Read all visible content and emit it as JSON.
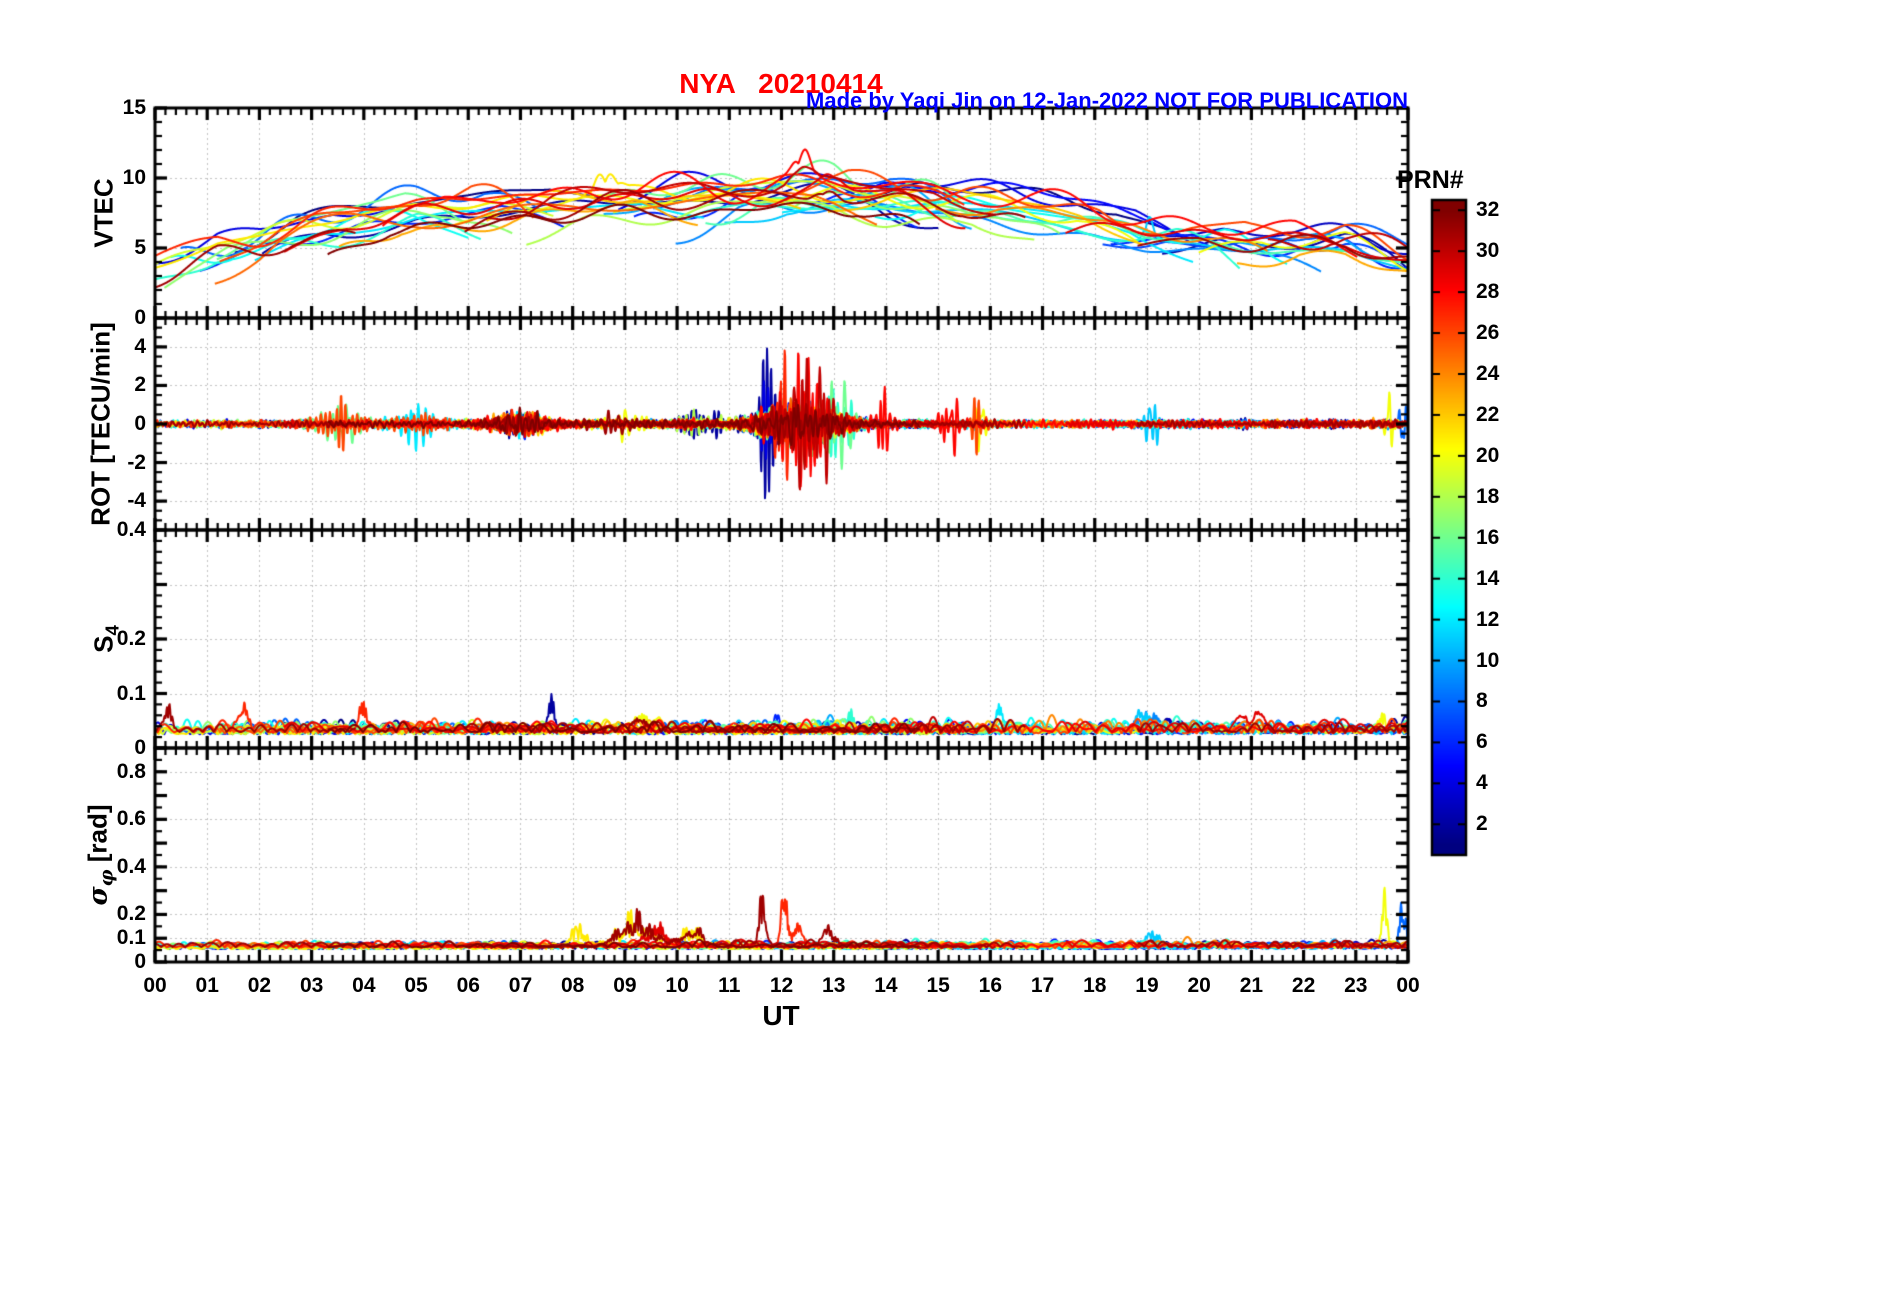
{
  "header": {
    "title": "NYA   20210414",
    "title_color": "#FF0000",
    "credit": "Made by Yaqi Jin on 12-Jan-2022",
    "notice": "NOT FOR PUBLICATION",
    "annotation_color": "#0000FF"
  },
  "xaxis": {
    "label": "UT",
    "range": [
      0,
      24
    ],
    "tick_values": [
      0,
      1,
      2,
      3,
      4,
      5,
      6,
      7,
      8,
      9,
      10,
      11,
      12,
      13,
      14,
      15,
      16,
      17,
      18,
      19,
      20,
      21,
      22,
      23,
      24
    ],
    "tick_labels": [
      "00",
      "01",
      "02",
      "03",
      "04",
      "05",
      "06",
      "07",
      "08",
      "09",
      "10",
      "11",
      "12",
      "13",
      "14",
      "15",
      "16",
      "17",
      "18",
      "19",
      "20",
      "21",
      "22",
      "23",
      "00"
    ]
  },
  "colorbar": {
    "title": "PRN#",
    "range": [
      0.5,
      32.5
    ],
    "ticks": [
      2,
      4,
      6,
      8,
      10,
      12,
      14,
      16,
      18,
      20,
      22,
      24,
      26,
      28,
      30,
      32
    ],
    "colormap": "jet",
    "colormap_stops": [
      "#00008F",
      "#0000FF",
      "#00A0FF",
      "#20FFD0",
      "#A0FF50",
      "#FFE000",
      "#FF6000",
      "#E00000",
      "#800000"
    ]
  },
  "chart_data": {
    "type": "line",
    "title": "NYA 20210414",
    "xlabel": "UT",
    "x_range_hours": [
      0,
      24
    ],
    "series_count": 32,
    "series_coloring": "GNSS PRN number 1-32 mapped onto jet colormap (blue=low PRN, dark red=high PRN)",
    "panels": [
      {
        "id": "vtec",
        "ylabel": "VTEC",
        "ylim": [
          0,
          15
        ],
        "yticks": [
          {
            "v": 15,
            "l": "15"
          },
          {
            "v": 10,
            "l": "10"
          },
          {
            "v": 5,
            "l": "5"
          },
          {
            "v": 0,
            "l": "0"
          }
        ],
        "grid": [
          5,
          10
        ],
        "ymajor": [
          0,
          5,
          10,
          15
        ],
        "yminor": 1,
        "hourly_x": [
          0,
          1,
          2,
          3,
          4,
          5,
          6,
          7,
          8,
          9,
          10,
          11,
          12,
          13,
          14,
          15,
          16,
          17,
          18,
          19,
          20,
          21,
          22,
          23,
          24
        ],
        "hourly_median": [
          4.5,
          4.8,
          5.3,
          6.2,
          7.0,
          7.5,
          7.6,
          8.0,
          8.4,
          8.5,
          8.5,
          8.6,
          8.9,
          9.0,
          8.6,
          8.5,
          8.1,
          7.6,
          7.0,
          6.4,
          6.0,
          5.6,
          5.5,
          5.5,
          5.4
        ],
        "prn_offset_spread": 2.4,
        "noise_amp": 0.85,
        "events": [
          {
            "t": 8.6,
            "w": 0.3,
            "a": 1.6,
            "prns": [
              21
            ]
          },
          {
            "t": 12.4,
            "w": 0.25,
            "a": 1.7,
            "prns": [
              28,
              30
            ]
          },
          {
            "t": 12.9,
            "w": 0.3,
            "a": 1.5,
            "prns": [
              29,
              31
            ]
          },
          {
            "t": 19.05,
            "w": 0.12,
            "a": 2.6,
            "prns": [
              11
            ]
          }
        ]
      },
      {
        "id": "rot",
        "ylabel": "ROT [TECU/min]",
        "ylim": [
          -5.5,
          5.5
        ],
        "yticks": [
          {
            "v": 4,
            "l": "4"
          },
          {
            "v": 2,
            "l": "2"
          },
          {
            "v": 0,
            "l": "0"
          },
          {
            "v": -2,
            "l": "-2"
          },
          {
            "v": -4,
            "l": "-4"
          }
        ],
        "grid": [
          -4,
          -2,
          0,
          2,
          4
        ],
        "ymajor": [
          -4,
          -2,
          0,
          2,
          4
        ],
        "yminor": 0.5,
        "base": 0.16,
        "events": [
          {
            "t": 3.5,
            "w": 0.5,
            "a": 0.9,
            "prns": [
              16,
              26
            ]
          },
          {
            "t": 5.0,
            "w": 0.4,
            "a": 0.9,
            "prns": [
              26,
              12
            ]
          },
          {
            "t": 7.0,
            "w": 0.5,
            "a": 0.4,
            "prns": [
              0
            ]
          },
          {
            "t": 9.0,
            "w": 0.5,
            "a": 0.6,
            "prns": [
              20,
              31
            ]
          },
          {
            "t": 10.5,
            "w": 0.4,
            "a": 0.8,
            "prns": [
              18,
              2
            ]
          },
          {
            "t": 11.7,
            "w": 0.15,
            "a": 2.6,
            "prns": [
              2,
              4
            ]
          },
          {
            "t": 12.1,
            "w": 0.18,
            "a": 3.0,
            "prns": [
              27
            ]
          },
          {
            "t": 12.3,
            "w": 0.8,
            "a": 0.8,
            "prns": [
              0
            ]
          },
          {
            "t": 12.45,
            "w": 0.3,
            "a": 2.2,
            "prns": [
              28,
              30
            ]
          },
          {
            "t": 12.8,
            "w": 0.3,
            "a": 2.0,
            "prns": [
              30,
              16
            ]
          },
          {
            "t": 13.15,
            "w": 0.2,
            "a": 1.7,
            "prns": [
              16,
              14
            ]
          },
          {
            "t": 13.9,
            "w": 0.15,
            "a": 1.5,
            "prns": [
              28
            ]
          },
          {
            "t": 15.2,
            "w": 0.2,
            "a": 1.5,
            "prns": [
              28
            ]
          },
          {
            "t": 15.8,
            "w": 0.15,
            "a": 1.3,
            "prns": [
              26,
              20
            ]
          },
          {
            "t": 19.1,
            "w": 0.15,
            "a": 1.2,
            "prns": [
              11
            ]
          },
          {
            "t": 23.65,
            "w": 0.08,
            "a": 2.2,
            "prns": [
              20
            ]
          },
          {
            "t": 23.9,
            "w": 0.08,
            "a": 1.5,
            "prns": [
              8
            ]
          }
        ]
      },
      {
        "id": "s4",
        "ylabel_main": "S",
        "ylabel_sub": "4",
        "ylim": [
          0,
          0.4
        ],
        "yticks": [
          {
            "v": 0.4,
            "l": "0.4"
          },
          {
            "v": 0.2,
            "l": "0.2"
          },
          {
            "v": 0.1,
            "l": "0.1"
          },
          {
            "v": 0,
            "l": "0"
          }
        ],
        "grid": [
          0.1,
          0.2,
          0.3
        ],
        "ymajor": [
          0,
          0.1,
          0.2,
          0.3,
          0.4
        ],
        "yminor": 0.02,
        "base": 0.028,
        "noise": 0.018,
        "events": [
          {
            "t": 0.25,
            "w": 0.1,
            "a": 0.055,
            "prns": [
              31
            ]
          },
          {
            "t": 1.7,
            "w": 0.15,
            "a": 0.045,
            "prns": [
              27
            ]
          },
          {
            "t": 4.0,
            "w": 0.1,
            "a": 0.06,
            "prns": [
              27
            ]
          },
          {
            "t": 7.6,
            "w": 0.08,
            "a": 0.06,
            "prns": [
              2
            ]
          },
          {
            "t": 9.3,
            "w": 0.25,
            "a": 0.03,
            "prns": [
              20,
              31
            ]
          },
          {
            "t": 11.9,
            "w": 0.1,
            "a": 0.05,
            "prns": [
              6
            ]
          },
          {
            "t": 13.3,
            "w": 0.12,
            "a": 0.04,
            "prns": [
              14
            ]
          },
          {
            "t": 16.2,
            "w": 0.1,
            "a": 0.055,
            "prns": [
              12
            ]
          },
          {
            "t": 19.0,
            "w": 0.25,
            "a": 0.035,
            "prns": [
              9,
              11
            ]
          },
          {
            "t": 21.0,
            "w": 0.2,
            "a": 0.025,
            "prns": [
              29
            ]
          },
          {
            "t": 23.5,
            "w": 0.12,
            "a": 0.04,
            "prns": [
              20
            ]
          }
        ]
      },
      {
        "id": "sigma_phi",
        "ylabel_main": "σ",
        "ylabel_sub": "φ",
        "ylabel_unit": " [rad]",
        "ylim": [
          0,
          0.9
        ],
        "yticks": [
          {
            "v": 0.8,
            "l": "0.8"
          },
          {
            "v": 0.6,
            "l": "0.6"
          },
          {
            "v": 0.4,
            "l": "0.4"
          },
          {
            "v": 0.2,
            "l": "0.2"
          },
          {
            "v": 0.1,
            "l": "0.1"
          },
          {
            "v": 0,
            "l": "0"
          }
        ],
        "grid": [
          0.1,
          0.2,
          0.4,
          0.6,
          0.8
        ],
        "ymajor": [
          0,
          0.1,
          0.2,
          0.3,
          0.4,
          0.5,
          0.6,
          0.7,
          0.8,
          0.9
        ],
        "yminor": 0.05,
        "base": 0.06,
        "noise": 0.022,
        "events": [
          {
            "t": 8.1,
            "w": 0.2,
            "a": 0.1,
            "prns": [
              21
            ]
          },
          {
            "t": 9.2,
            "w": 0.45,
            "a": 0.12,
            "prns": [
              31,
              21
            ]
          },
          {
            "t": 9.6,
            "w": 0.3,
            "a": 0.08,
            "prns": [
              29
            ]
          },
          {
            "t": 10.3,
            "w": 0.25,
            "a": 0.1,
            "prns": [
              21,
              31
            ]
          },
          {
            "t": 11.65,
            "w": 0.1,
            "a": 0.26,
            "prns": [
              31
            ]
          },
          {
            "t": 12.05,
            "w": 0.08,
            "a": 0.4,
            "prns": [
              27
            ]
          },
          {
            "t": 12.35,
            "w": 0.1,
            "a": 0.14,
            "prns": [
              27
            ]
          },
          {
            "t": 12.9,
            "w": 0.15,
            "a": 0.08,
            "prns": [
              31
            ]
          },
          {
            "t": 19.1,
            "w": 0.25,
            "a": 0.06,
            "prns": [
              11
            ]
          },
          {
            "t": 23.55,
            "w": 0.06,
            "a": 0.34,
            "prns": [
              20
            ]
          },
          {
            "t": 23.9,
            "w": 0.08,
            "a": 0.24,
            "prns": [
              8
            ]
          }
        ]
      }
    ]
  }
}
